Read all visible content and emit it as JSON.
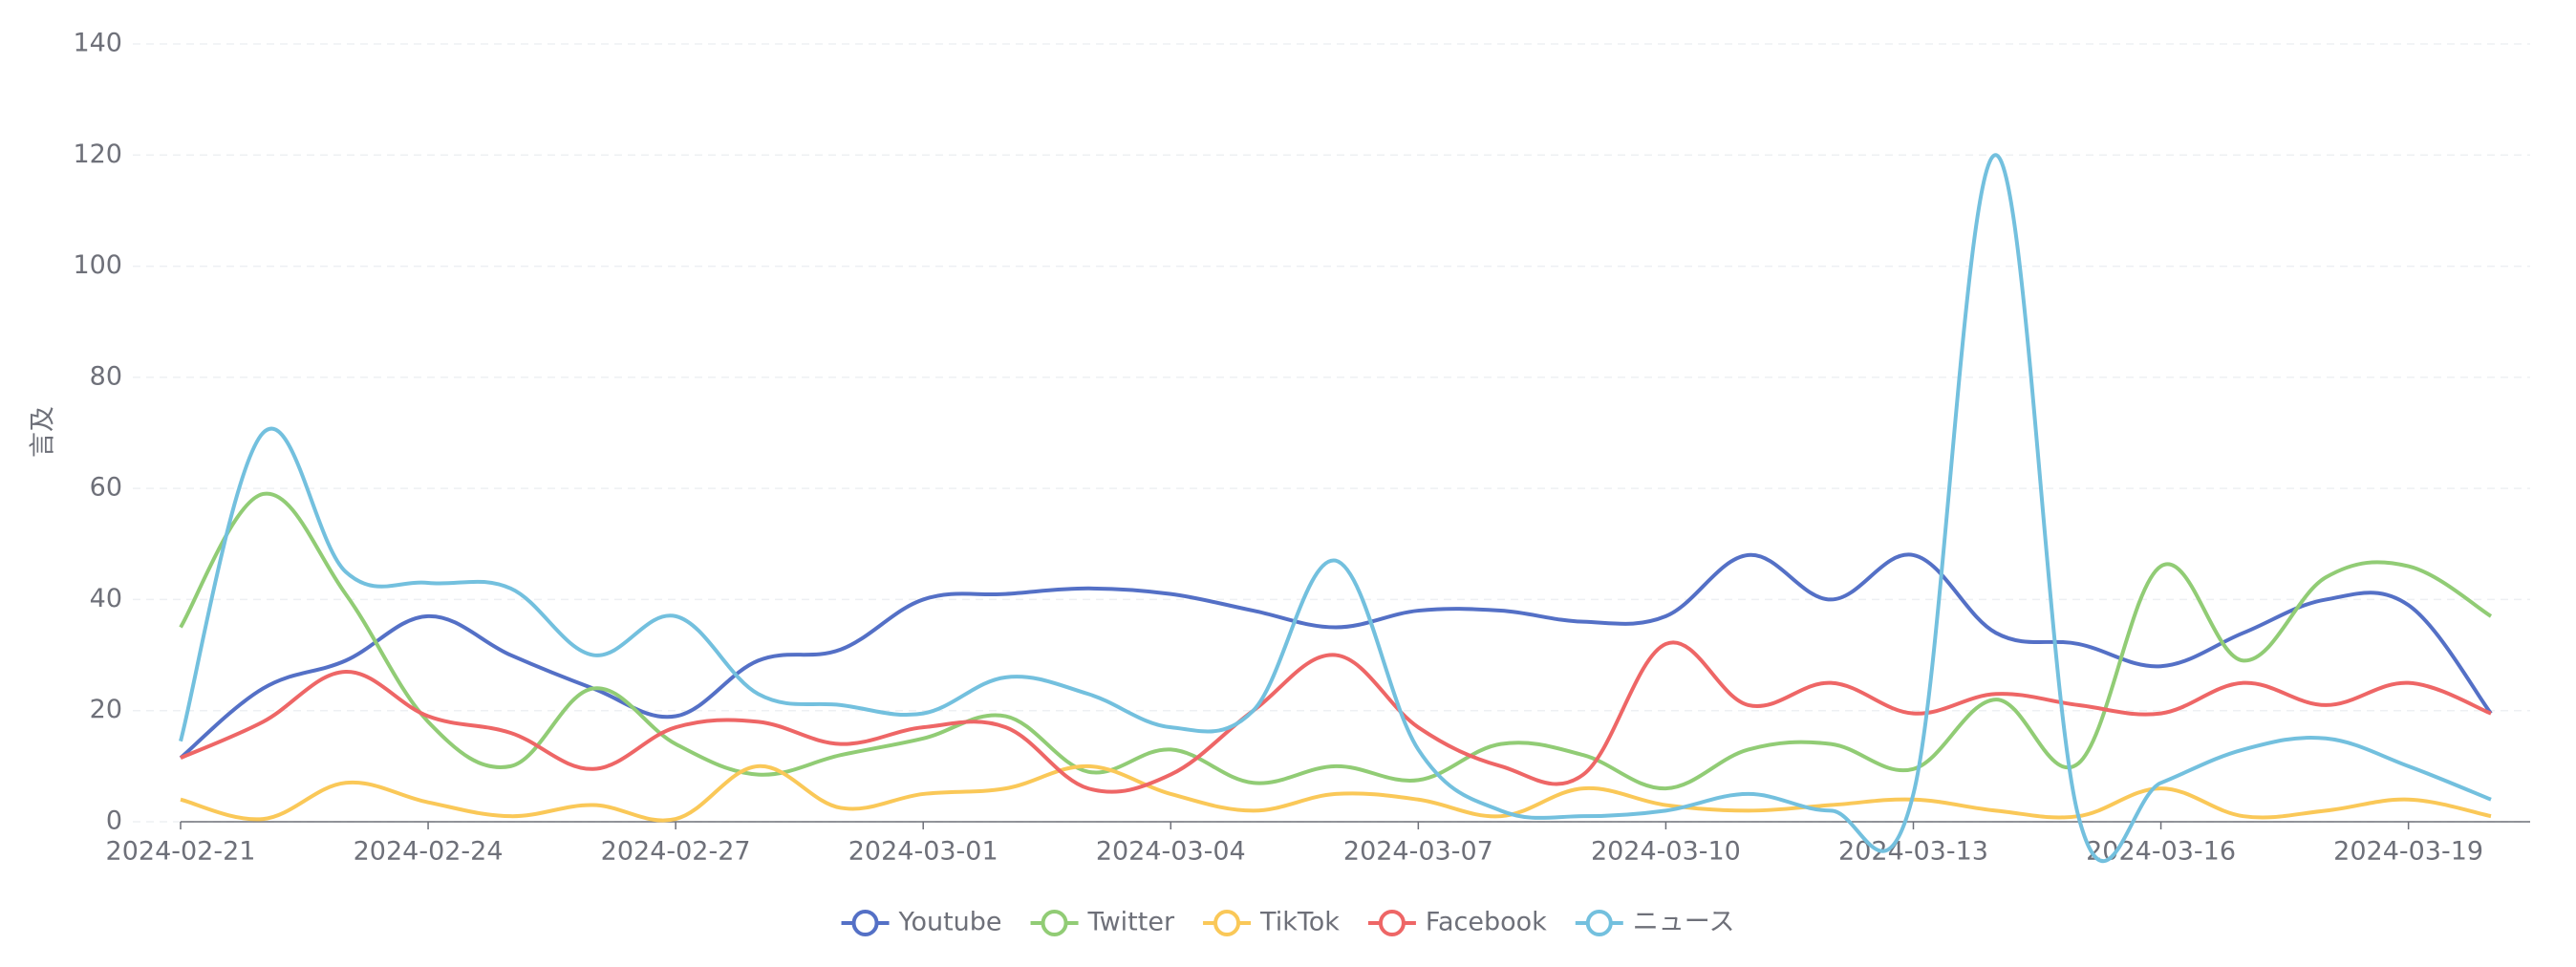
{
  "chart_data": {
    "type": "line",
    "y_label": "言及",
    "x": [
      "2024-02-21",
      "2024-02-22",
      "2024-02-23",
      "2024-02-24",
      "2024-02-25",
      "2024-02-26",
      "2024-02-27",
      "2024-02-28",
      "2024-02-29",
      "2024-03-01",
      "2024-03-02",
      "2024-03-03",
      "2024-03-04",
      "2024-03-05",
      "2024-03-06",
      "2024-03-07",
      "2024-03-08",
      "2024-03-09",
      "2024-03-10",
      "2024-03-11",
      "2024-03-12",
      "2024-03-13",
      "2024-03-14",
      "2024-03-15",
      "2024-03-16",
      "2024-03-17",
      "2024-03-18",
      "2024-03-19",
      "2024-03-20"
    ],
    "xticks": [
      "2024-02-21",
      "2024-02-24",
      "2024-02-27",
      "2024-03-01",
      "2024-03-04",
      "2024-03-07",
      "2024-03-10",
      "2024-03-13",
      "2024-03-16",
      "2024-03-19"
    ],
    "ylim": [
      0,
      140
    ],
    "yticks": [
      0,
      20,
      40,
      60,
      80,
      100,
      120,
      140
    ],
    "grid": true,
    "smooth": true,
    "legend": "bottom",
    "series": [
      {
        "name": "Youtube",
        "color": "#5470c6",
        "values": [
          11.5,
          24,
          29,
          37,
          30,
          24,
          19,
          29,
          31,
          40,
          41,
          42,
          41,
          38,
          35,
          38,
          38,
          36,
          37,
          48,
          40,
          48,
          34,
          32,
          28,
          34,
          40,
          39,
          19.5
        ]
      },
      {
        "name": "Twitter",
        "color": "#91cc75",
        "values": [
          35,
          59,
          41,
          18,
          10,
          24,
          14,
          8.5,
          12,
          15,
          19,
          9,
          13,
          7,
          10,
          7.5,
          14,
          12,
          6,
          13,
          14,
          9.5,
          22,
          10.5,
          46,
          29,
          44,
          46,
          37
        ]
      },
      {
        "name": "TikTok",
        "color": "#fac858",
        "values": [
          4,
          0.5,
          7,
          3.5,
          1,
          3,
          0.5,
          10,
          2.5,
          5,
          6,
          10,
          5,
          2,
          5,
          4,
          1,
          6,
          3,
          2,
          3,
          4,
          2,
          1,
          6,
          1,
          2,
          4,
          1
        ]
      },
      {
        "name": "Facebook",
        "color": "#ee6666",
        "values": [
          11.5,
          18,
          27,
          19,
          16,
          9.5,
          17,
          18,
          14,
          17,
          17,
          6,
          8.5,
          20,
          30,
          17,
          10,
          8.5,
          32,
          21,
          25,
          19.5,
          23,
          21,
          19.5,
          25,
          21,
          25,
          19.5
        ]
      },
      {
        "name": "ニュース",
        "color": "#73c0de",
        "values": [
          14.5,
          70,
          45,
          43,
          42,
          30,
          37,
          23,
          21,
          19.5,
          26,
          23,
          17,
          20,
          47,
          13,
          2,
          1,
          2,
          5,
          2,
          5,
          120,
          1,
          7,
          13,
          15,
          10,
          4
        ]
      }
    ]
  }
}
